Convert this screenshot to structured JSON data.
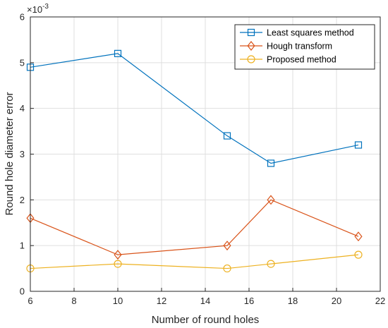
{
  "chart_data": {
    "type": "line",
    "title": "",
    "xlabel": "Number of round holes",
    "ylabel": "Round hole diameter error",
    "y_exponent_base": "×10",
    "y_exponent_power": "-3",
    "xlim": [
      6,
      22
    ],
    "ylim": [
      0,
      6
    ],
    "xticks": [
      6,
      8,
      10,
      12,
      14,
      16,
      18,
      20,
      22
    ],
    "yticks": [
      0,
      1,
      2,
      3,
      4,
      5,
      6
    ],
    "grid": true,
    "legend_position": "top-right",
    "x": [
      6,
      10,
      15,
      17,
      21
    ],
    "series": [
      {
        "name": "Least squares method",
        "marker": "square",
        "color": "#0072BD",
        "values": [
          4.9,
          5.2,
          3.4,
          2.8,
          3.2
        ]
      },
      {
        "name": "Hough transform",
        "marker": "diamond",
        "color": "#D95319",
        "values": [
          1.6,
          0.8,
          1.0,
          2.0,
          1.2
        ]
      },
      {
        "name": "Proposed method",
        "marker": "circle",
        "color": "#EDB120",
        "values": [
          0.5,
          0.6,
          0.5,
          0.6,
          0.8
        ]
      }
    ]
  }
}
